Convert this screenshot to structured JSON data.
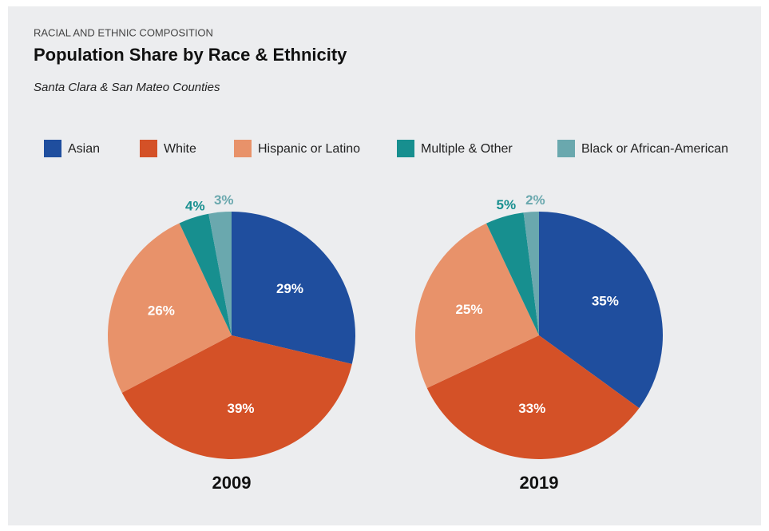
{
  "header": {
    "eyebrow": "RACIAL AND ETHNIC COMPOSITION",
    "title": "Population Share by Race & Ethnicity",
    "subtitle": "Santa Clara & San Mateo Counties"
  },
  "legend": {
    "categories": [
      "Asian",
      "White",
      "Hispanic or Latino",
      "Multiple & Other",
      "Black or African-American"
    ],
    "colors": [
      "#1f4e9e",
      "#d45127",
      "#e8926a",
      "#178f8f",
      "#6aa8ae"
    ]
  },
  "chart_data": [
    {
      "type": "pie",
      "title": "2009",
      "values": [
        29,
        39,
        26,
        4,
        3
      ],
      "value_labels": [
        "29%",
        "39%",
        "26%",
        "4%",
        "3%"
      ]
    },
    {
      "type": "pie",
      "title": "2019",
      "values": [
        35,
        33,
        25,
        5,
        2
      ],
      "value_labels": [
        "35%",
        "33%",
        "25%",
        "5%",
        "2%"
      ]
    }
  ]
}
